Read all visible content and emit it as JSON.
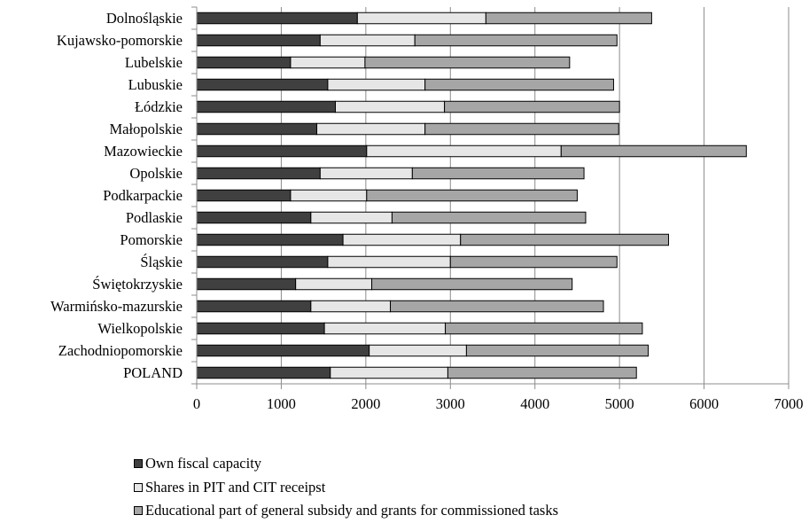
{
  "chart_data": {
    "type": "bar",
    "orientation": "horizontal",
    "stacked": true,
    "categories": [
      "Dolnośląskie",
      "Kujawsko-pomorskie",
      "Lubelskie",
      "Lubuskie",
      "Łódzkie",
      "Małopolskie",
      "Mazowieckie",
      "Opolskie",
      "Podkarpackie",
      "Podlaskie",
      "Pomorskie",
      "Śląskie",
      "Świętokrzyskie",
      "Warmińsko-mazurskie",
      "Wielkopolskie",
      "Zachodniopomorskie",
      "POLAND"
    ],
    "series": [
      {
        "name": "Own fiscal capacity",
        "color": "#404040",
        "values": [
          1900,
          1460,
          1110,
          1550,
          1640,
          1420,
          2010,
          1460,
          1110,
          1350,
          1730,
          1550,
          1170,
          1350,
          1510,
          2040,
          1580
        ]
      },
      {
        "name": "Shares in PIT and CIT receipst",
        "color": "#e6e6e6",
        "values": [
          1520,
          1120,
          880,
          1150,
          1290,
          1280,
          2300,
          1090,
          900,
          960,
          1390,
          1450,
          900,
          940,
          1430,
          1150,
          1390
        ]
      },
      {
        "name": "Educational part of general subsidy and grants for commissioned tasks",
        "color": "#a6a6a6",
        "values": [
          1960,
          2390,
          2420,
          2230,
          2070,
          2290,
          2190,
          2030,
          2490,
          2290,
          2460,
          1970,
          2370,
          2520,
          2330,
          2150,
          2230
        ]
      }
    ],
    "xlim": [
      0,
      7000
    ],
    "xticks": [
      0,
      1000,
      2000,
      3000,
      4000,
      5000,
      6000,
      7000
    ],
    "grid": "vertical",
    "legend_position": "bottom"
  }
}
